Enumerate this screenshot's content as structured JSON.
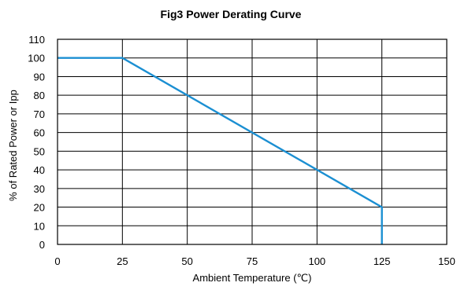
{
  "chart_data": {
    "type": "line",
    "title": "Fig3 Power Derating Curve",
    "xlabel": "Ambient Temperature (℃)",
    "ylabel": "% of Rated Power or Ipp",
    "xlim": [
      0,
      150
    ],
    "ylim": [
      0,
      110
    ],
    "xticks": [
      0,
      25,
      50,
      75,
      100,
      125,
      150
    ],
    "yticks": [
      0,
      10,
      20,
      30,
      40,
      50,
      60,
      70,
      80,
      90,
      100,
      110
    ],
    "grid": true,
    "series": [
      {
        "x": [
          0,
          25,
          125,
          125
        ],
        "y": [
          100,
          100,
          20,
          0
        ],
        "color": "#1b8fd2"
      }
    ]
  }
}
